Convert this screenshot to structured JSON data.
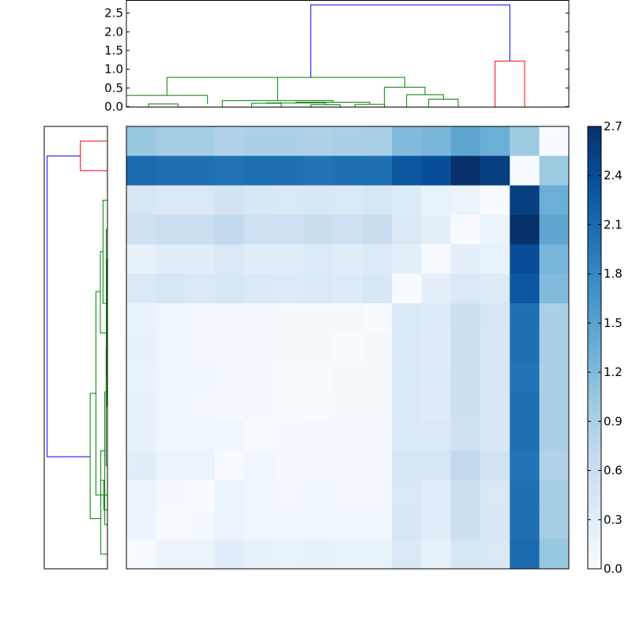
{
  "chart_data": {
    "type": "heatmap",
    "title": "",
    "xlabel": "",
    "ylabel": "",
    "grid": false,
    "colormap": "Blues",
    "colorbar": {
      "range": [
        0.0,
        2.7
      ],
      "ticks": [
        0.0,
        0.3,
        0.6,
        0.9,
        1.2,
        1.5,
        1.8,
        2.1,
        2.4,
        2.7
      ],
      "tick_labels": [
        "0.0",
        "0.3",
        "0.6",
        "0.9",
        "1.2",
        "1.5",
        "1.8",
        "2.1",
        "2.4",
        "2.7"
      ]
    },
    "matrix": [
      [
        1.05,
        0.95,
        0.95,
        0.85,
        0.9,
        0.9,
        0.88,
        0.9,
        0.92,
        1.2,
        1.25,
        1.45,
        1.35,
        1.0,
        0.0
      ],
      [
        2.1,
        2.05,
        2.05,
        2.0,
        2.05,
        2.05,
        2.0,
        2.05,
        2.05,
        2.3,
        2.4,
        2.7,
        2.55,
        0.0,
        1.0
      ],
      [
        0.45,
        0.4,
        0.4,
        0.5,
        0.42,
        0.4,
        0.42,
        0.4,
        0.45,
        0.35,
        0.2,
        0.15,
        0.0,
        2.55,
        1.35
      ],
      [
        0.55,
        0.6,
        0.6,
        0.7,
        0.55,
        0.55,
        0.62,
        0.55,
        0.62,
        0.4,
        0.25,
        0.0,
        0.15,
        2.7,
        1.45
      ],
      [
        0.22,
        0.3,
        0.3,
        0.4,
        0.3,
        0.3,
        0.35,
        0.3,
        0.35,
        0.25,
        0.0,
        0.25,
        0.2,
        2.4,
        1.25
      ],
      [
        0.4,
        0.45,
        0.38,
        0.45,
        0.38,
        0.35,
        0.38,
        0.35,
        0.42,
        0.0,
        0.25,
        0.4,
        0.35,
        2.3,
        1.2
      ],
      [
        0.2,
        0.1,
        0.08,
        0.06,
        0.06,
        0.04,
        0.04,
        0.04,
        0.0,
        0.4,
        0.35,
        0.6,
        0.45,
        2.05,
        0.9
      ],
      [
        0.22,
        0.1,
        0.08,
        0.06,
        0.06,
        0.04,
        0.04,
        0.0,
        0.04,
        0.38,
        0.32,
        0.6,
        0.42,
        2.05,
        0.92
      ],
      [
        0.2,
        0.1,
        0.1,
        0.08,
        0.06,
        0.02,
        0.0,
        0.04,
        0.04,
        0.38,
        0.35,
        0.6,
        0.42,
        2.0,
        0.9
      ],
      [
        0.22,
        0.1,
        0.08,
        0.05,
        0.05,
        0.0,
        0.02,
        0.04,
        0.04,
        0.38,
        0.32,
        0.58,
        0.42,
        2.05,
        0.9
      ],
      [
        0.22,
        0.1,
        0.1,
        0.1,
        0.0,
        0.05,
        0.06,
        0.06,
        0.06,
        0.4,
        0.38,
        0.55,
        0.42,
        2.05,
        0.9
      ],
      [
        0.3,
        0.15,
        0.15,
        0.0,
        0.1,
        0.05,
        0.08,
        0.06,
        0.06,
        0.45,
        0.45,
        0.7,
        0.5,
        2.0,
        0.85
      ],
      [
        0.15,
        0.05,
        0.0,
        0.15,
        0.1,
        0.08,
        0.1,
        0.08,
        0.08,
        0.4,
        0.3,
        0.6,
        0.4,
        2.05,
        0.95
      ],
      [
        0.15,
        0.0,
        0.05,
        0.15,
        0.1,
        0.1,
        0.1,
        0.1,
        0.1,
        0.45,
        0.3,
        0.6,
        0.42,
        2.05,
        0.95
      ],
      [
        0.0,
        0.15,
        0.15,
        0.3,
        0.22,
        0.2,
        0.22,
        0.2,
        0.2,
        0.4,
        0.22,
        0.45,
        0.4,
        2.1,
        1.05
      ]
    ],
    "top_dendrogram": {
      "axis": "x",
      "ylim": [
        0.0,
        2.85
      ],
      "yticks": [
        0.0,
        0.5,
        1.0,
        1.5,
        2.0,
        2.5
      ],
      "ytick_labels": [
        "0.0",
        "0.5",
        "1.0",
        "1.5",
        "2.0",
        "2.5"
      ],
      "links": [
        {
          "x": [
            12.5,
            12.5,
            14.5,
            14.5
          ],
          "y": [
            0.0,
            0.05,
            0.05,
            0.0
          ],
          "color": "#008000"
        },
        {
          "x": [
            15.5,
            15.5,
            17.5,
            17.5
          ],
          "y": [
            0.0,
            0.06,
            0.06,
            0.0
          ],
          "color": "#008000"
        },
        {
          "x": [
            8.5,
            8.5,
            10.5,
            10.5
          ],
          "y": [
            0.0,
            0.09,
            0.09,
            0.0
          ],
          "color": "#008000"
        },
        {
          "x": [
            9.5,
            9.5,
            13.5,
            13.5
          ],
          "y": [
            0.09,
            0.1,
            0.1,
            0.05
          ],
          "color": "#008000"
        },
        {
          "x": [
            11.5,
            11.5,
            16.5,
            16.5
          ],
          "y": [
            0.1,
            0.12,
            0.12,
            0.06
          ],
          "color": "#008000"
        },
        {
          "x": [
            1.5,
            1.5,
            3.5,
            3.5
          ],
          "y": [
            0.0,
            0.07,
            0.07,
            0.0
          ],
          "color": "#008000"
        },
        {
          "x": [
            6.5,
            6.5,
            14.0,
            14.0
          ],
          "y": [
            0.0,
            0.16,
            0.16,
            0.12
          ],
          "color": "#008000"
        },
        {
          "x": [
            0.0,
            0.0,
            5.5,
            5.5
          ],
          "y": [
            0.0,
            0.3,
            0.3,
            0.07
          ],
          "color": "#008000"
        },
        {
          "x": [
            2.75,
            2.75,
            10.25,
            10.25
          ],
          "y": [
            0.3,
            0.78,
            0.78,
            0.16
          ],
          "color": "#008000"
        },
        {
          "x": [
            20.5,
            20.5,
            22.5,
            22.5
          ],
          "y": [
            0.0,
            0.2,
            0.2,
            0.0
          ],
          "color": "#008000"
        },
        {
          "x": [
            19.0,
            19.0,
            21.5,
            21.5
          ],
          "y": [
            0.0,
            0.32,
            0.32,
            0.2
          ],
          "color": "#008000"
        },
        {
          "x": [
            17.5,
            17.5,
            20.25,
            20.25
          ],
          "y": [
            0.0,
            0.52,
            0.52,
            0.32
          ],
          "color": "#008000"
        },
        {
          "x": [
            6.5,
            6.5,
            18.875,
            18.875
          ],
          "y": [
            0.78,
            0.78,
            0.78,
            0.52
          ],
          "color": "#008000"
        },
        {
          "x": [
            25.0,
            25.0,
            27.0,
            27.0
          ],
          "y": [
            0.0,
            1.22,
            1.22,
            0.0
          ],
          "color": "#ff0000"
        },
        {
          "x": [
            12.5,
            12.5,
            26.0,
            26.0
          ],
          "y": [
            0.78,
            2.72,
            2.72,
            1.22
          ],
          "color": "#0000ff"
        }
      ]
    },
    "left_dendrogram": {
      "axis": "y",
      "xlim": [
        2.85,
        0.0
      ],
      "links": [
        {
          "y": [
            0.5,
            0.5,
            1.5,
            1.5
          ],
          "x": [
            0.0,
            1.22,
            1.22,
            0.0
          ],
          "color": "#ff0000"
        },
        {
          "y": [
            3.5,
            3.5,
            8.5,
            8.5
          ],
          "x": [
            0.0,
            0.05,
            0.05,
            0.0
          ],
          "color": "#008000"
        },
        {
          "y": [
            4.5,
            4.5,
            9.5,
            9.5
          ],
          "x": [
            0.0,
            0.02,
            0.02,
            0.0
          ],
          "color": "#008000"
        },
        {
          "y": [
            2.5,
            2.5,
            6.0,
            6.0
          ],
          "x": [
            0.0,
            0.2,
            0.2,
            0.05
          ],
          "color": "#008000"
        },
        {
          "y": [
            4.25,
            4.25,
            7.0,
            7.0
          ],
          "x": [
            0.2,
            0.32,
            0.32,
            0.02
          ],
          "color": "#008000"
        },
        {
          "y": [
            5.6,
            5.6,
            12.5,
            12.5
          ],
          "x": [
            0.32,
            0.52,
            0.52,
            0.0
          ],
          "color": "#008000"
        },
        {
          "y": [
            7.5,
            7.5,
            11.5,
            11.5
          ],
          "x": [
            0.0,
            0.06,
            0.06,
            0.0
          ],
          "color": "#008000"
        },
        {
          "y": [
            9.0,
            9.0,
            13.5,
            13.5
          ],
          "x": [
            0.06,
            0.12,
            0.12,
            0.0
          ],
          "color": "#008000"
        },
        {
          "y": [
            11.0,
            11.0,
            14.5,
            14.5
          ],
          "x": [
            0.12,
            0.3,
            0.3,
            0.0
          ],
          "color": "#008000"
        },
        {
          "y": [
            12.0,
            12.0,
            13.0,
            13.0
          ],
          "x": [
            0.3,
            0.16,
            0.16,
            0.0
          ],
          "color": "#008000"
        },
        {
          "y": [
            9.05,
            9.05,
            13.3,
            13.3
          ],
          "x": [
            0.52,
            0.78,
            0.78,
            0.3
          ],
          "color": "#008000"
        },
        {
          "y": [
            1.0,
            1.0,
            11.2,
            11.2
          ],
          "x": [
            1.22,
            2.72,
            2.72,
            0.78
          ],
          "color": "#0000ff"
        }
      ]
    }
  }
}
